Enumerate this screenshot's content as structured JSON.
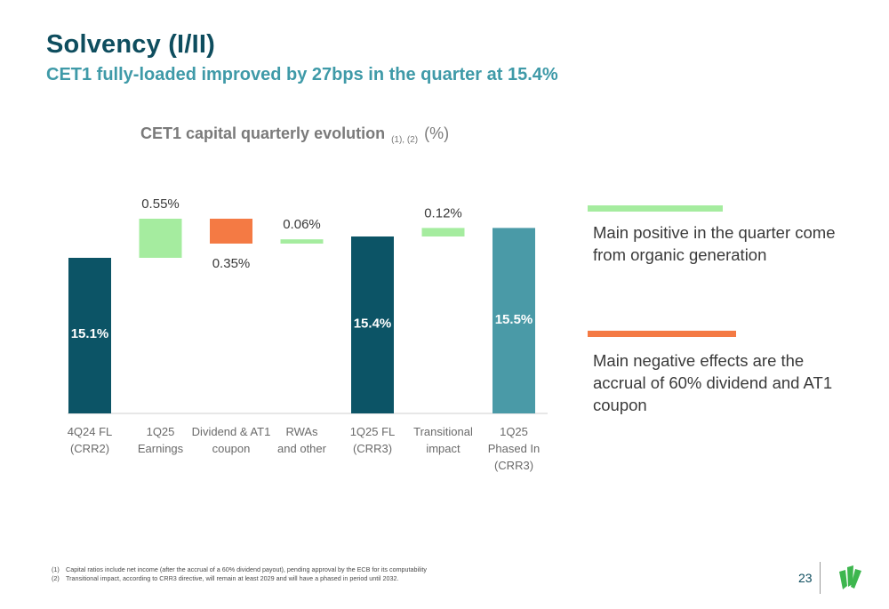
{
  "header": {
    "title": "Solvency (I/II)",
    "subtitle": "CET1 fully-loaded improved by 27bps in the quarter at 15.4%"
  },
  "colors": {
    "dark_teal": "#0c5466",
    "light_teal": "#4a9aa7",
    "positive_green": "#a5ec9f",
    "negative_orange": "#f47a44",
    "title_teal": "#0e4d5e"
  },
  "chart_data": {
    "type": "bar",
    "subtype": "waterfall",
    "title": "CET1 capital quarterly evolution",
    "title_refs": "(1), (2)",
    "unit": "(%)",
    "categories": [
      [
        "4Q24 FL",
        "(CRR2)"
      ],
      [
        "1Q25",
        "Earnings"
      ],
      [
        "Dividend & AT1",
        "coupon"
      ],
      [
        "RWAs",
        "and other"
      ],
      [
        "1Q25 FL",
        "(CRR3)"
      ],
      [
        "Transitional",
        "impact"
      ],
      [
        "1Q25",
        "Phased In",
        "(CRR3)"
      ]
    ],
    "bars": [
      {
        "kind": "total",
        "start": 0,
        "end": 15.1,
        "label": "15.1%",
        "color": "#0c5466"
      },
      {
        "kind": "increase",
        "start": 15.1,
        "end": 15.65,
        "label": "0.55%",
        "color": "#a5ec9f"
      },
      {
        "kind": "decrease",
        "start": 15.65,
        "end": 15.3,
        "label": "0.35%",
        "color": "#f47a44"
      },
      {
        "kind": "increase",
        "start": 15.3,
        "end": 15.36,
        "label": "0.06%",
        "color": "#a5ec9f"
      },
      {
        "kind": "total",
        "start": 0,
        "end": 15.4,
        "label": "15.4%",
        "color": "#0c5466"
      },
      {
        "kind": "increase",
        "start": 15.4,
        "end": 15.52,
        "label": "0.12%",
        "color": "#a5ec9f"
      },
      {
        "kind": "total",
        "start": 0,
        "end": 15.52,
        "label": "15.5%",
        "color": "#4a9aa7"
      }
    ],
    "legend": "none",
    "grid": false
  },
  "callouts": [
    {
      "type": "positive",
      "color": "#a5ec9f",
      "text": "Main positive in the quarter come from organic generation"
    },
    {
      "type": "negative",
      "color": "#f47a44",
      "text": "Main negative effects are the accrual of 60% dividend and AT1 coupon"
    }
  ],
  "footnotes": [
    {
      "num": "(1)",
      "text": "Capital ratios include net income (after the accrual of a 60% dividend payout), pending approval by the ECB for its computability"
    },
    {
      "num": "(2)",
      "text": "Transitional impact, according to CRR3 directive, will remain at least 2029 and will have a phased in period until 2032."
    }
  ],
  "page_number": "23",
  "logo": {
    "icon": "sabadell-logo-icon"
  }
}
